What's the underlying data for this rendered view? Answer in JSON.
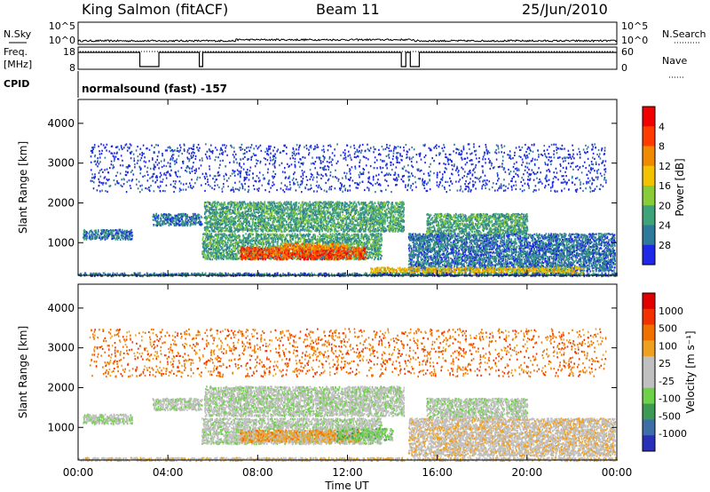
{
  "header": {
    "station": "King Salmon (fitACF)",
    "beam": "Beam 11",
    "date": "25/Jun/2010"
  },
  "status_panel": {
    "left_labels": [
      "N.Sky",
      "Freq.",
      "[MHz]",
      "CPID"
    ],
    "right_labels": [
      "N.Search",
      "Nave"
    ],
    "nsky_ticks": [
      "10^5",
      "10^0"
    ],
    "nsearch_ticks": [
      "10^5",
      "10^0"
    ],
    "freq_ticks": [
      "18",
      "8"
    ],
    "nave_ticks": [
      "60",
      "0"
    ],
    "cpid_text": "normalsound (fast) -157",
    "freq_level_high": 0.92,
    "freq_dips_hours": [
      [
        2.75,
        3.6
      ],
      [
        5.4,
        5.55
      ],
      [
        14.4,
        14.6
      ],
      [
        14.8,
        15.2
      ]
    ]
  },
  "x_axis": {
    "label": "Time UT",
    "ticks": [
      "00:00",
      "04:00",
      "08:00",
      "12:00",
      "16:00",
      "20:00",
      "00:00"
    ]
  },
  "chart_data": [
    {
      "type": "heatmap",
      "title": "",
      "xlabel": "Time UT",
      "ylabel": "Slant Range [km]",
      "xlim": [
        0,
        24
      ],
      "ylim": [
        180,
        4600
      ],
      "y_ticks": [
        1000,
        2000,
        3000,
        4000
      ],
      "colorbar": {
        "label": "Power [dB]",
        "ticks": [
          "4",
          "8",
          "12",
          "16",
          "20",
          "24",
          "28"
        ],
        "colors": [
          "#1e28e6",
          "#2f7a9a",
          "#3fa37a",
          "#88cc3a",
          "#f2c300",
          "#f08a00",
          "#ff3b00",
          "#f20000"
        ]
      },
      "regions": [
        {
          "t0": 0.2,
          "t1": 2.4,
          "r0": 1100,
          "r1": 1350,
          "level": 1
        },
        {
          "t0": 3.3,
          "t1": 5.5,
          "r0": 1450,
          "r1": 1750,
          "level": 1
        },
        {
          "t0": 5.6,
          "t1": 14.5,
          "r0": 1300,
          "r1": 2050,
          "level": 2
        },
        {
          "t0": 5.5,
          "t1": 13.5,
          "r0": 600,
          "r1": 1250,
          "level": 2
        },
        {
          "t0": 7.2,
          "t1": 12.8,
          "r0": 600,
          "r1": 900,
          "level": 6
        },
        {
          "t0": 9.0,
          "t1": 12.0,
          "r0": 850,
          "r1": 1000,
          "level": 5
        },
        {
          "t0": 14.7,
          "t1": 23.9,
          "r0": 300,
          "r1": 1250,
          "level": 1
        },
        {
          "t0": 15.5,
          "t1": 20.0,
          "r0": 1250,
          "r1": 1750,
          "level": 2
        },
        {
          "t0": 13.0,
          "t1": 22.5,
          "r0": 250,
          "r1": 400,
          "level": 4
        },
        {
          "t0": 0.0,
          "t1": 24.0,
          "r0": 180,
          "r1": 260,
          "level": 1
        },
        {
          "t0": 0.5,
          "t1": 23.5,
          "r0": 2300,
          "r1": 3500,
          "level": 0
        }
      ]
    },
    {
      "type": "heatmap",
      "title": "",
      "xlabel": "Time UT",
      "ylabel": "Slant Range [km]",
      "xlim": [
        0,
        24
      ],
      "ylim": [
        180,
        4600
      ],
      "y_ticks": [
        1000,
        2000,
        3000,
        4000
      ],
      "colorbar": {
        "label": "Velocity [m s⁻¹]",
        "ticks": [
          "1000",
          "500",
          "100",
          "25",
          "-25",
          "-100",
          "-500",
          "-1000"
        ],
        "colors": [
          "#2a2fb8",
          "#3e6ea8",
          "#3d9a55",
          "#6fd04a",
          "#c0c0c0",
          "#c0c0c0",
          "#f0a020",
          "#f07000",
          "#f23000",
          "#e00000"
        ]
      },
      "regions": [
        {
          "t0": 0.2,
          "t1": 2.4,
          "r0": 1100,
          "r1": 1350,
          "level": 4
        },
        {
          "t0": 3.3,
          "t1": 5.5,
          "r0": 1450,
          "r1": 1750,
          "level": 4
        },
        {
          "t0": 5.6,
          "t1": 14.5,
          "r0": 1300,
          "r1": 2050,
          "level": 4
        },
        {
          "t0": 5.5,
          "t1": 13.5,
          "r0": 600,
          "r1": 1250,
          "level": 4
        },
        {
          "t0": 7.2,
          "t1": 12.5,
          "r0": 650,
          "r1": 950,
          "level": 6
        },
        {
          "t0": 11.5,
          "t1": 14.0,
          "r0": 700,
          "r1": 1000,
          "level": 3
        },
        {
          "t0": 14.7,
          "t1": 23.9,
          "r0": 300,
          "r1": 1250,
          "level": 5
        },
        {
          "t0": 15.5,
          "t1": 20.0,
          "r0": 1250,
          "r1": 1750,
          "level": 4
        },
        {
          "t0": 0.0,
          "t1": 24.0,
          "r0": 180,
          "r1": 260,
          "level": 5
        },
        {
          "t0": 0.5,
          "t1": 23.5,
          "r0": 2300,
          "r1": 3500,
          "level": 7
        }
      ]
    }
  ]
}
